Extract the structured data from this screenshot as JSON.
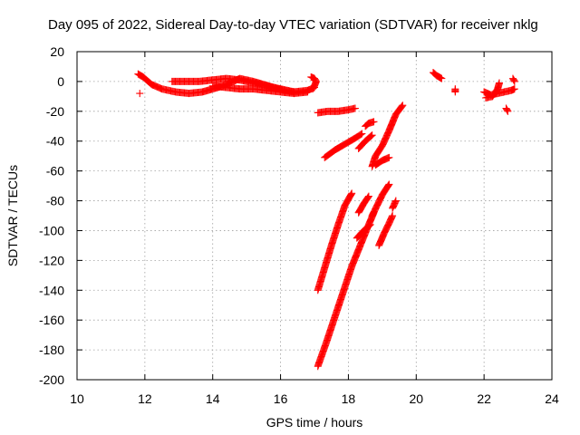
{
  "chart_data": {
    "type": "scatter",
    "title": "Day 095 of 2022, Sidereal Day-to-day VTEC variation (SDTVAR) for receiver nklg",
    "xlabel": "GPS time / hours",
    "ylabel": "SDTVAR / TECUs",
    "xlim": [
      10,
      24
    ],
    "ylim": [
      -200,
      20
    ],
    "xticks": [
      10,
      12,
      14,
      16,
      18,
      20,
      22,
      24
    ],
    "yticks": [
      20,
      0,
      -20,
      -40,
      -60,
      -80,
      -100,
      -120,
      -140,
      -160,
      -180,
      -200
    ],
    "grid": true,
    "marker": "+",
    "color": "#ff0000",
    "tracks": [
      {
        "points": [
          [
            11.8,
            5
          ],
          [
            11.95,
            3
          ],
          [
            12.2,
            -2
          ],
          [
            12.5,
            -5
          ],
          [
            12.9,
            -7
          ],
          [
            13.3,
            -8
          ],
          [
            13.7,
            -7
          ],
          [
            14.0,
            -5
          ],
          [
            14.3,
            -3
          ],
          [
            14.6,
            0
          ],
          [
            14.8,
            2
          ],
          [
            15.0,
            1
          ],
          [
            15.2,
            0
          ],
          [
            15.5,
            -2
          ],
          [
            15.8,
            -4
          ],
          [
            16.1,
            -6
          ],
          [
            16.4,
            -7
          ]
        ]
      },
      {
        "points": [
          [
            12.8,
            0
          ],
          [
            13.2,
            0
          ],
          [
            13.6,
            0
          ],
          [
            14.0,
            1
          ],
          [
            14.4,
            2
          ],
          [
            14.8,
            1
          ],
          [
            15.2,
            -1
          ],
          [
            15.6,
            -3
          ],
          [
            16.0,
            -5
          ],
          [
            16.4,
            -7
          ],
          [
            16.8,
            -6
          ],
          [
            17.0,
            -4
          ]
        ]
      },
      {
        "points": [
          [
            14.0,
            -3
          ],
          [
            14.4,
            -4
          ],
          [
            14.8,
            -5
          ],
          [
            15.2,
            -5
          ],
          [
            15.6,
            -6
          ],
          [
            16.0,
            -7
          ],
          [
            16.4,
            -8
          ],
          [
            16.8,
            -7
          ]
        ]
      },
      {
        "points": [
          [
            16.9,
            3
          ],
          [
            17.0,
            2
          ],
          [
            17.05,
            0
          ],
          [
            17.0,
            -3
          ],
          [
            16.95,
            -5
          ]
        ]
      },
      {
        "points": [
          [
            11.85,
            -8
          ]
        ]
      },
      {
        "points": [
          [
            17.1,
            -21
          ],
          [
            17.4,
            -20
          ],
          [
            17.7,
            -20
          ],
          [
            18.0,
            -19
          ],
          [
            18.2,
            -18
          ]
        ]
      },
      {
        "points": [
          [
            17.3,
            -51
          ],
          [
            17.6,
            -46
          ],
          [
            17.9,
            -42
          ],
          [
            18.2,
            -38
          ],
          [
            18.4,
            -35
          ]
        ]
      },
      {
        "points": [
          [
            18.3,
            -45
          ],
          [
            18.5,
            -40
          ],
          [
            18.7,
            -36
          ]
        ]
      },
      {
        "points": [
          [
            18.5,
            -30
          ],
          [
            18.6,
            -28
          ],
          [
            18.75,
            -27
          ]
        ]
      },
      {
        "points": [
          [
            18.7,
            -57
          ],
          [
            18.8,
            -50
          ],
          [
            19.0,
            -43
          ],
          [
            19.2,
            -33
          ],
          [
            19.4,
            -22
          ],
          [
            19.6,
            -16
          ]
        ]
      },
      {
        "points": [
          [
            18.8,
            -56
          ],
          [
            19.0,
            -53
          ],
          [
            19.2,
            -51
          ]
        ]
      },
      {
        "points": [
          [
            17.1,
            -140
          ],
          [
            17.3,
            -125
          ],
          [
            17.5,
            -110
          ],
          [
            17.7,
            -96
          ],
          [
            17.9,
            -83
          ],
          [
            18.1,
            -75
          ]
        ]
      },
      {
        "points": [
          [
            17.1,
            -191
          ],
          [
            17.35,
            -175
          ],
          [
            17.6,
            -158
          ],
          [
            17.85,
            -141
          ],
          [
            18.1,
            -124
          ],
          [
            18.35,
            -110
          ],
          [
            18.6,
            -96
          ],
          [
            18.75,
            -88
          ]
        ]
      },
      {
        "points": [
          [
            18.3,
            -88
          ],
          [
            18.45,
            -82
          ],
          [
            18.6,
            -77
          ]
        ]
      },
      {
        "points": [
          [
            18.25,
            -105
          ],
          [
            18.45,
            -100
          ],
          [
            18.65,
            -96
          ]
        ]
      },
      {
        "points": [
          [
            18.7,
            -90
          ],
          [
            18.85,
            -83
          ],
          [
            19.0,
            -76
          ],
          [
            19.2,
            -69
          ]
        ]
      },
      {
        "points": [
          [
            18.9,
            -110
          ],
          [
            19.05,
            -102
          ],
          [
            19.2,
            -95
          ],
          [
            19.3,
            -90
          ]
        ]
      },
      {
        "points": [
          [
            19.3,
            -85
          ],
          [
            19.4,
            -80
          ]
        ]
      },
      {
        "points": [
          [
            20.5,
            6
          ],
          [
            20.6,
            4
          ],
          [
            20.75,
            2
          ]
        ]
      },
      {
        "points": [
          [
            21.15,
            -5
          ],
          [
            21.15,
            -7
          ]
        ]
      },
      {
        "points": [
          [
            22.0,
            -7
          ],
          [
            22.2,
            -9
          ],
          [
            22.4,
            -8
          ],
          [
            22.6,
            -7
          ],
          [
            22.8,
            -6
          ],
          [
            22.9,
            -5
          ]
        ]
      },
      {
        "points": [
          [
            22.05,
            -11
          ],
          [
            22.25,
            -10
          ],
          [
            22.4,
            -5
          ],
          [
            22.45,
            -1
          ]
        ]
      },
      {
        "points": [
          [
            22.85,
            2
          ],
          [
            22.9,
            0
          ]
        ]
      },
      {
        "points": [
          [
            22.65,
            -18
          ],
          [
            22.7,
            -20
          ]
        ]
      }
    ]
  }
}
